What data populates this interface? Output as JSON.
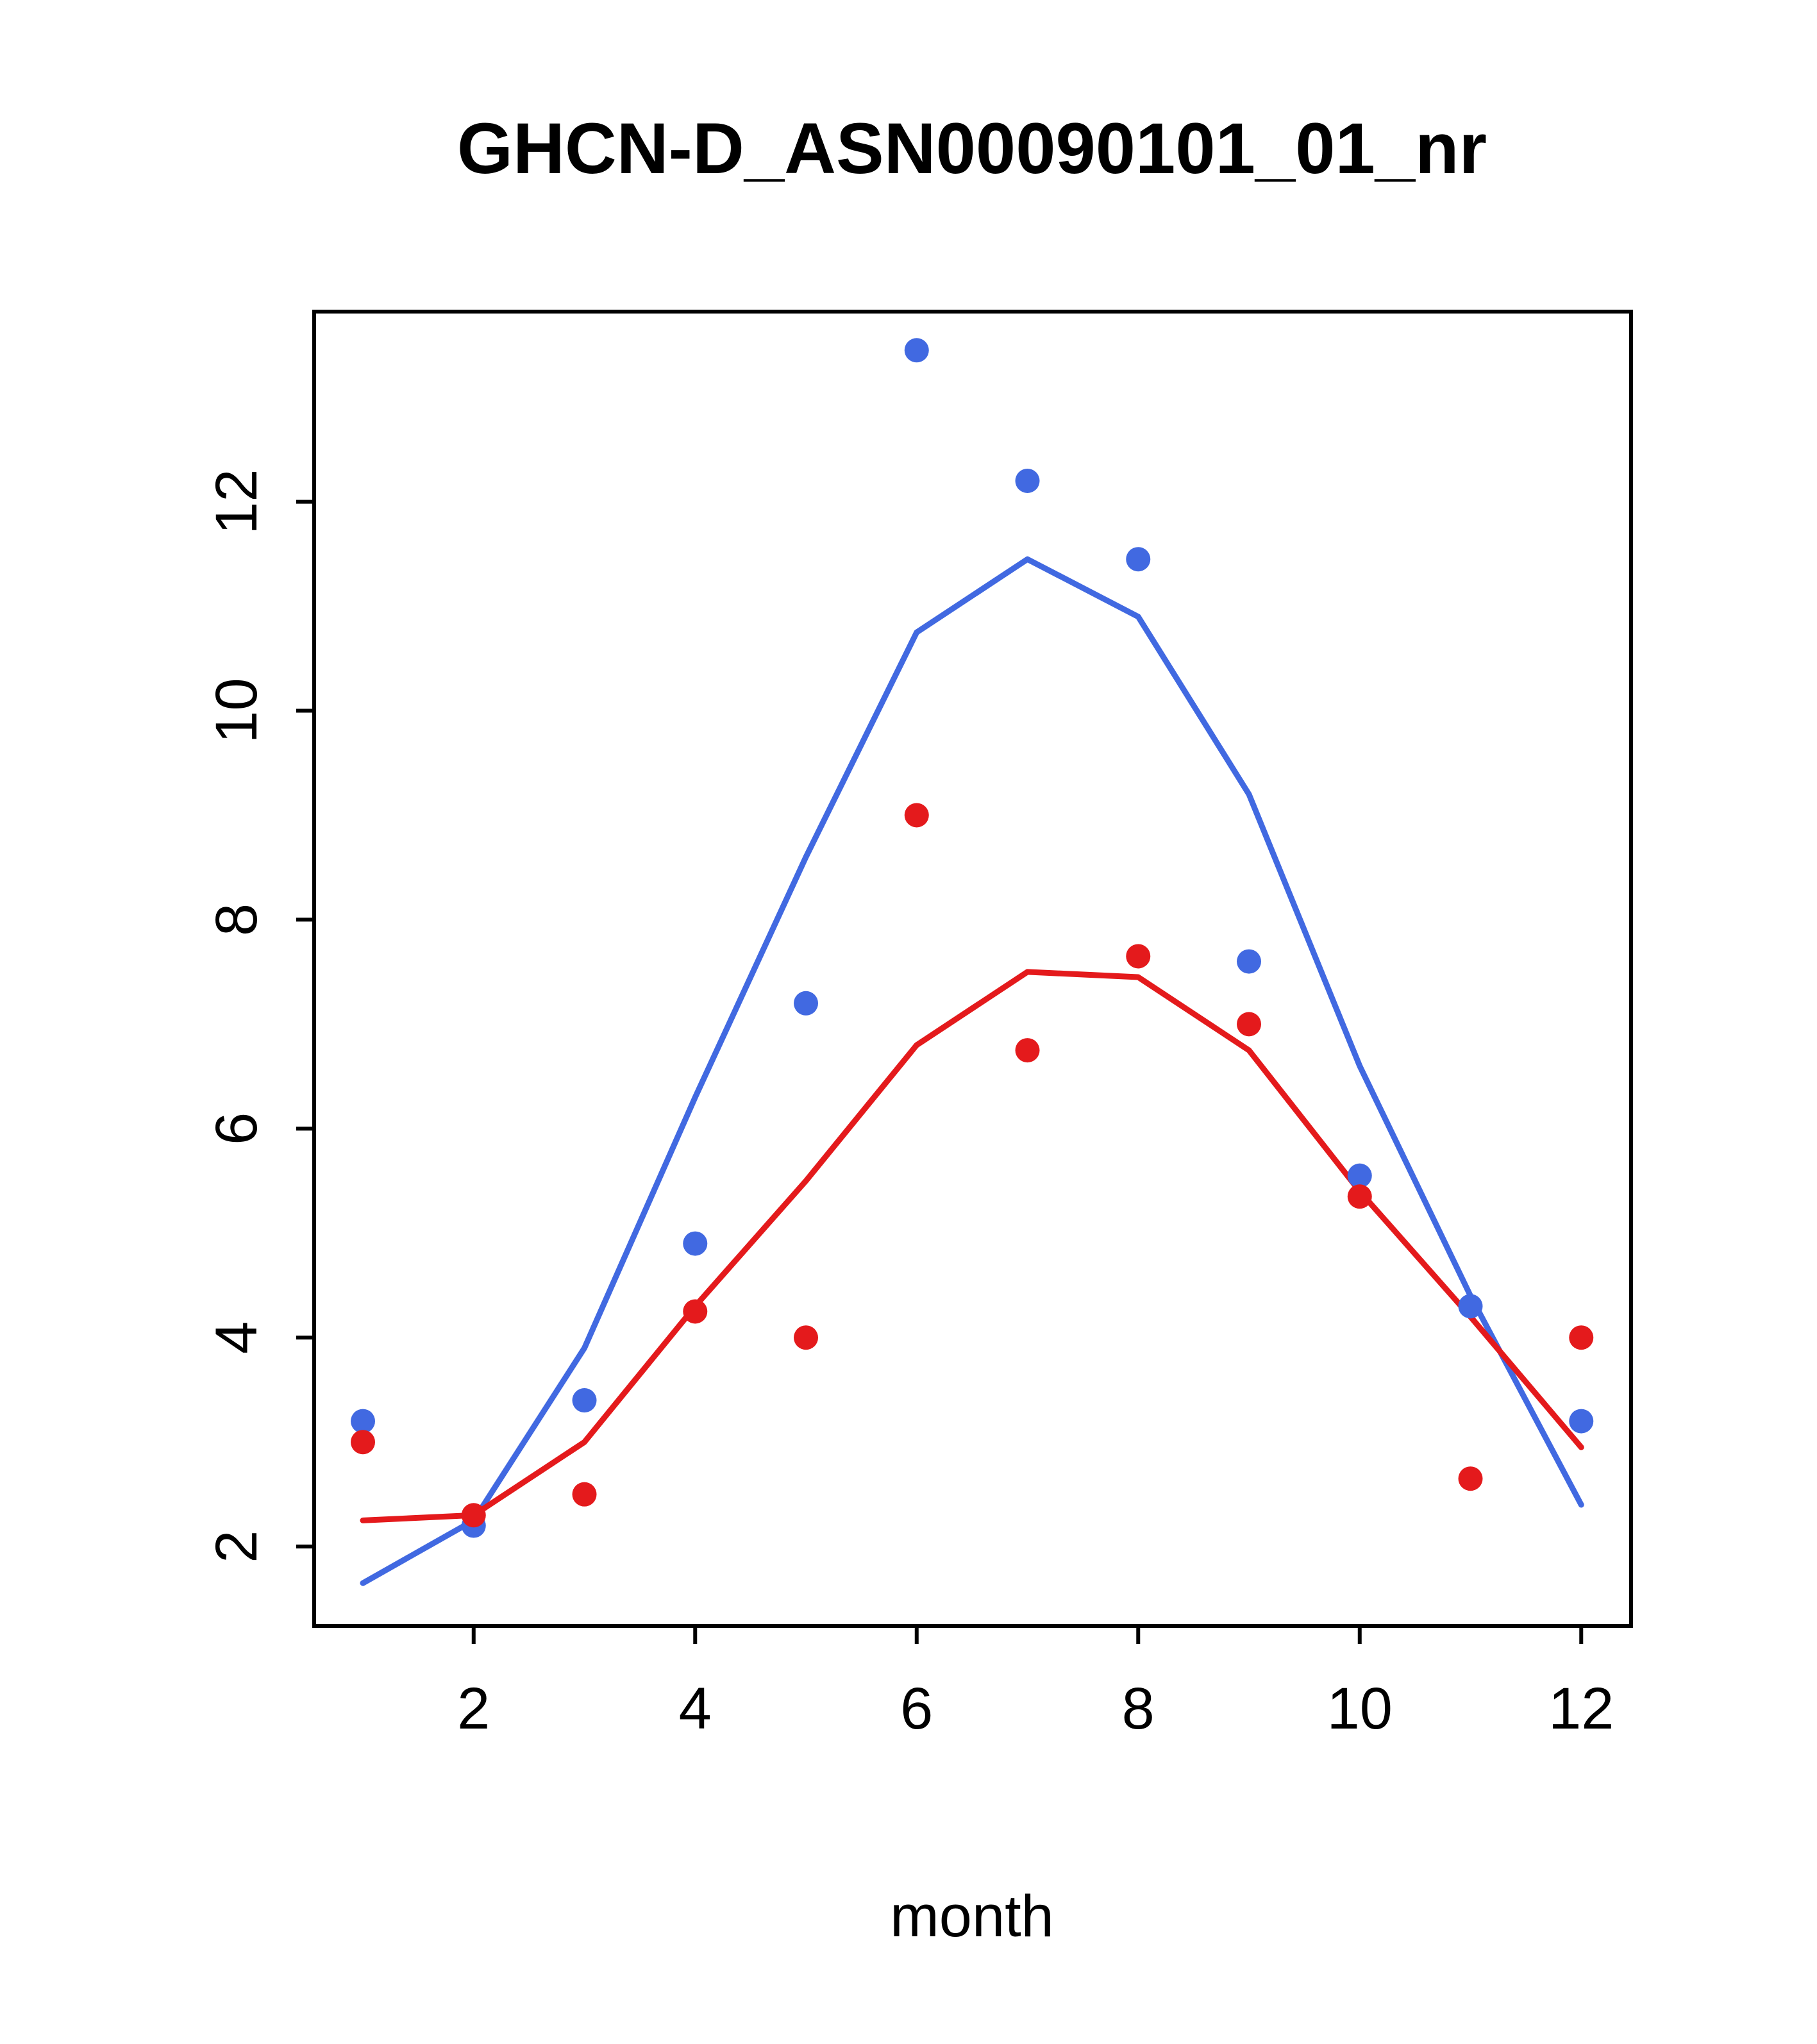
{
  "title": "GHCN-D_ASN00090101_01_nr",
  "chart_data": {
    "type": "scatter",
    "title": "GHCN-D_ASN00090101_01_nr",
    "xlabel": "month",
    "ylabel": "",
    "x": [
      1,
      2,
      3,
      4,
      5,
      6,
      7,
      8,
      9,
      10,
      11,
      12
    ],
    "xlim": [
      0.56,
      12.45
    ],
    "ylim": [
      1.24,
      13.82
    ],
    "x_ticks": [
      2,
      4,
      6,
      8,
      10,
      12
    ],
    "y_ticks": [
      2,
      4,
      6,
      8,
      10,
      12
    ],
    "grid": false,
    "legend": null,
    "colors": {
      "blue_series": "#4169E1",
      "red_series": "#E41A1C",
      "axis": "#000000",
      "background": "#ffffff"
    },
    "series": [
      {
        "name": "blue-points",
        "style": "points",
        "color": "#4169E1",
        "values": [
          3.2,
          2.2,
          3.4,
          4.9,
          7.2,
          13.45,
          12.2,
          11.45,
          7.6,
          5.55,
          4.3,
          3.2
        ]
      },
      {
        "name": "blue-line",
        "style": "line",
        "color": "#4169E1",
        "values": [
          1.65,
          2.25,
          3.9,
          6.3,
          8.6,
          10.75,
          11.45,
          10.9,
          9.2,
          6.6,
          4.4,
          2.4
        ]
      },
      {
        "name": "red-points",
        "style": "points",
        "color": "#E41A1C",
        "values": [
          3.0,
          2.3,
          2.5,
          4.25,
          4.0,
          9.0,
          6.75,
          7.65,
          7.0,
          5.35,
          2.65,
          4.0
        ]
      },
      {
        "name": "red-line",
        "style": "line",
        "color": "#E41A1C",
        "values": [
          2.25,
          2.3,
          3.0,
          4.3,
          5.5,
          6.8,
          7.5,
          7.45,
          6.75,
          5.4,
          4.2,
          2.95
        ]
      }
    ]
  }
}
